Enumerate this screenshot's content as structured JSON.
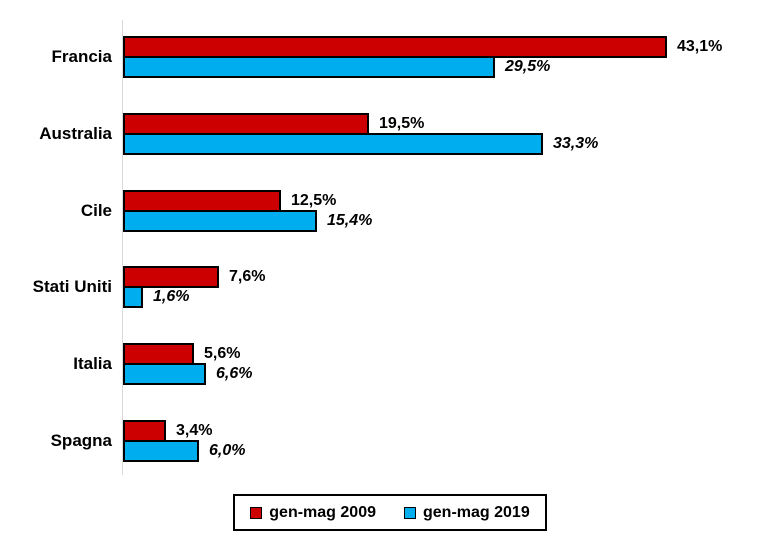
{
  "chart_data": {
    "type": "bar",
    "orientation": "horizontal",
    "title": "",
    "categories": [
      "Francia",
      "Australia",
      "Cile",
      "Stati Uniti",
      "Italia",
      "Spagna"
    ],
    "series": [
      {
        "name": "gen-mag 2009",
        "color": "#cc0000",
        "values": [
          43.1,
          19.5,
          12.5,
          7.6,
          5.6,
          3.4
        ],
        "labels": [
          "43,1%",
          "19,5%",
          "12,5%",
          "7,6%",
          "5,6%",
          "3,4%"
        ]
      },
      {
        "name": "gen-mag 2019",
        "color": "#00aeef",
        "values": [
          29.5,
          33.3,
          15.4,
          1.6,
          6.6,
          6.0
        ],
        "labels": [
          "29,5%",
          "33,3%",
          "15,4%",
          "1,6%",
          "6,6%",
          "6,0%"
        ]
      }
    ],
    "xlim": [
      0,
      51
    ],
    "grid": false,
    "axis_line_side": "left",
    "legend_position": "bottom",
    "value_format": "percent-comma-decimal",
    "value_label_style_2009": "bold",
    "value_label_style_2019": "bold-italic"
  },
  "colors": {
    "series_2009": "#cc0000",
    "series_2019": "#00aeef",
    "bar_border": "#000000",
    "axis_line": "#d9d9d9",
    "legend_border": "#000000",
    "text": "#000000",
    "background": "#ffffff"
  }
}
